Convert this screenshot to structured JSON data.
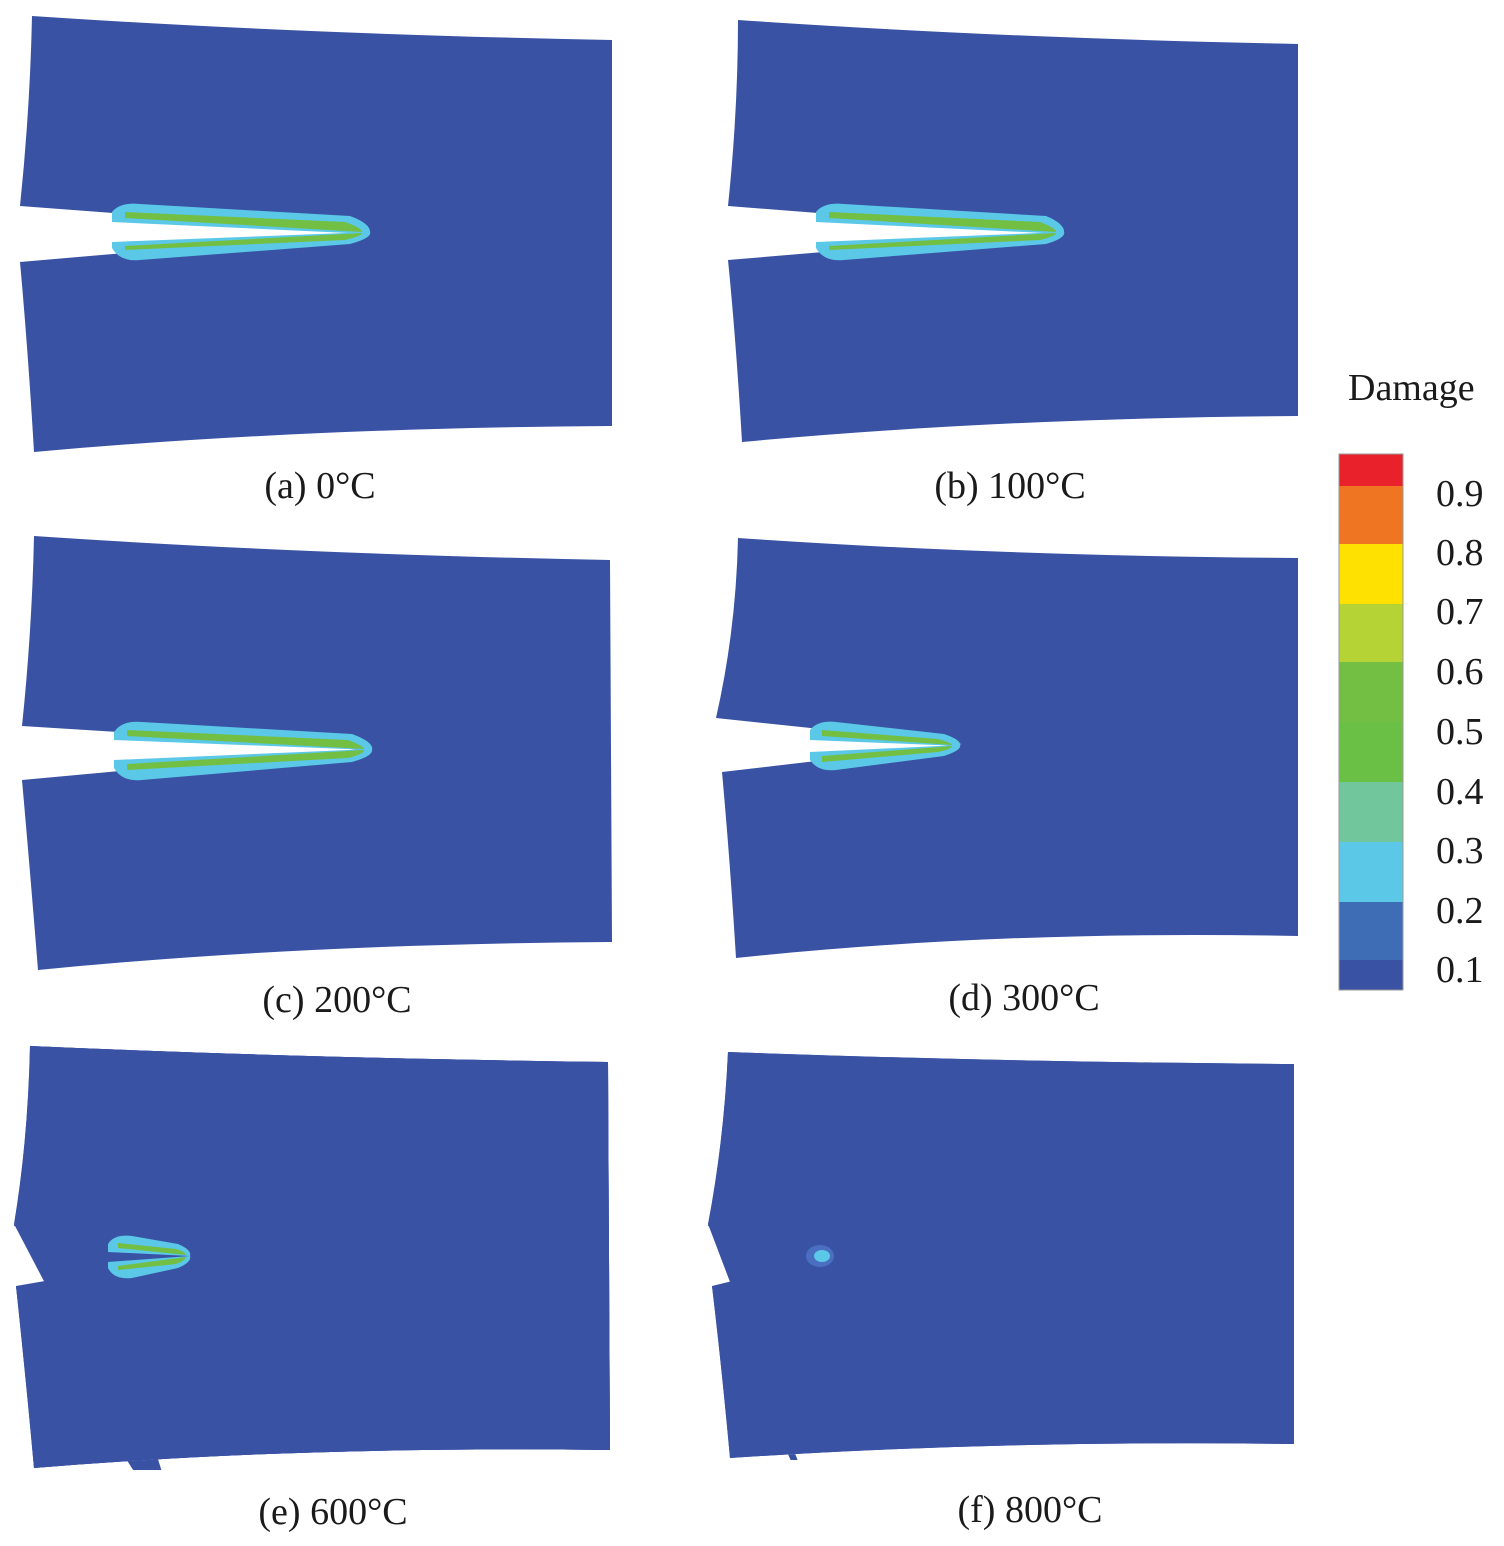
{
  "panels": [
    {
      "id": "a",
      "caption": "(a) 0°C"
    },
    {
      "id": "b",
      "caption": "(b) 100°C"
    },
    {
      "id": "c",
      "caption": "(c) 200°C"
    },
    {
      "id": "d",
      "caption": "(d) 300°C"
    },
    {
      "id": "e",
      "caption": "(e) 600°C"
    },
    {
      "id": "f",
      "caption": "(f) 800°C"
    }
  ],
  "legend": {
    "title": "Damage",
    "ticks": [
      "0.9",
      "0.8",
      "0.7",
      "0.6",
      "0.5",
      "0.4",
      "0.3",
      "0.2",
      "0.1"
    ],
    "bands": [
      "#e8212a",
      "#f07523",
      "#ffe100",
      "#b5d335",
      "#72bf44",
      "#6abf45",
      "#72c69b",
      "#5bc8e8",
      "#3f6db5",
      "#3952a4"
    ]
  },
  "colors": {
    "specimen": "#3952a4",
    "damage_outer": "#5bc8e8",
    "damage_mid": "#72c69b",
    "damage_inner": "#72bf44"
  }
}
